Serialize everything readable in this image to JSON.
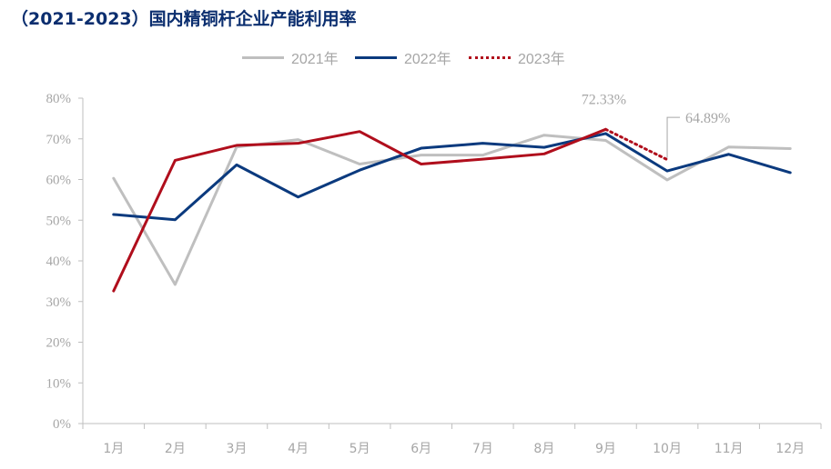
{
  "chart_data": {
    "type": "line",
    "title": "（2021-2023）国内精铜杆企业产能利用率",
    "categories": [
      "1月",
      "2月",
      "3月",
      "4月",
      "5月",
      "6月",
      "7月",
      "8月",
      "9月",
      "10月",
      "11月",
      "12月"
    ],
    "y_ticks": [
      "0%",
      "10%",
      "20%",
      "30%",
      "40%",
      "50%",
      "60%",
      "70%",
      "80%"
    ],
    "ylim": [
      0,
      80
    ],
    "y_unit": "%",
    "grid": false,
    "legend_position": "top-center",
    "series": [
      {
        "name": "2021年",
        "color": "#bfbfbf",
        "style": "solid",
        "values": [
          60.3,
          34.2,
          68.0,
          69.8,
          63.8,
          66.0,
          66.0,
          70.9,
          69.6,
          59.9,
          68.0,
          67.6
        ]
      },
      {
        "name": "2022年",
        "color": "#0b3a7e",
        "style": "solid",
        "values": [
          51.4,
          50.1,
          63.6,
          55.7,
          62.3,
          67.7,
          68.9,
          67.9,
          71.3,
          62.1,
          66.2,
          61.7
        ]
      },
      {
        "name": "2023年",
        "color": "#b00e1c",
        "style": "solid+dotted",
        "values": [
          32.6,
          64.7,
          68.4,
          68.9,
          71.8,
          63.8,
          65.0,
          66.3,
          72.33,
          64.89,
          null,
          null
        ],
        "dotted_from_index": 8
      }
    ],
    "annotations": [
      {
        "text": "72.33%",
        "category": "9月",
        "value": 72.33
      },
      {
        "text": "64.89%",
        "category": "10月",
        "value": 64.89
      }
    ]
  }
}
